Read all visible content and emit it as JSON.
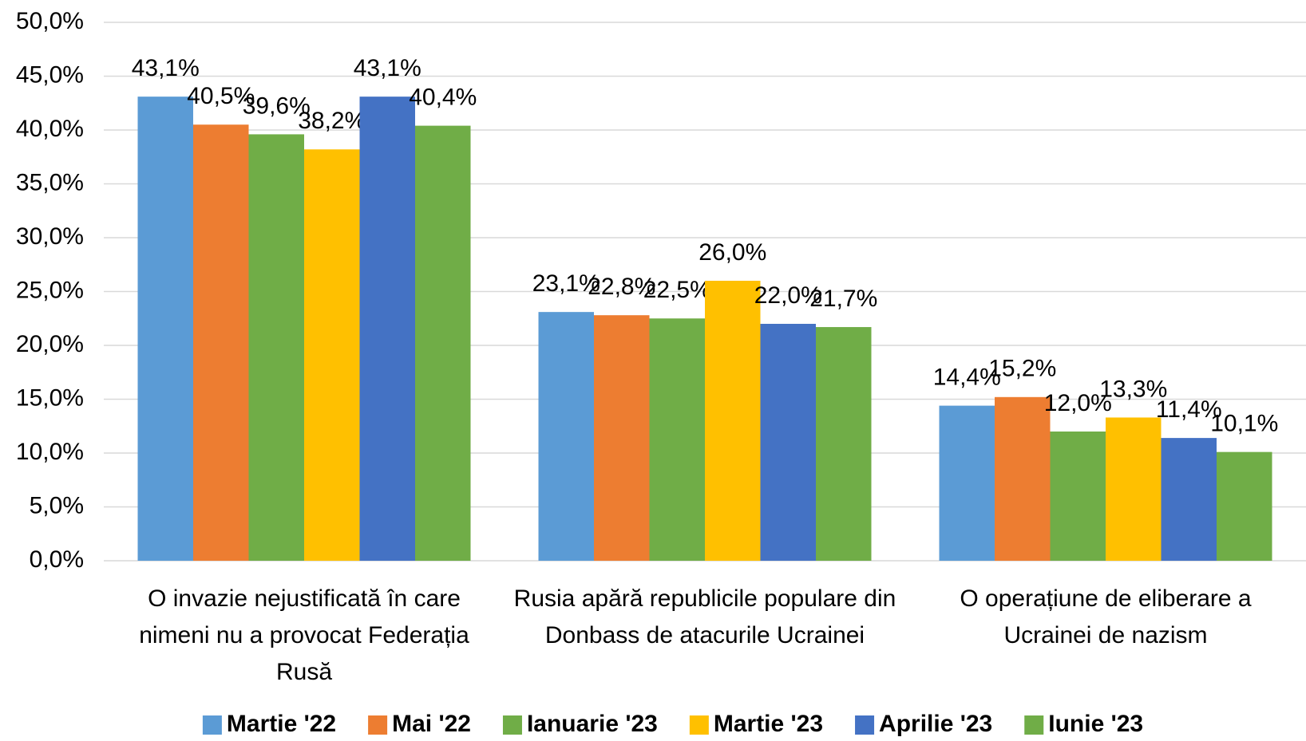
{
  "chart_data": {
    "type": "bar",
    "categories": [
      "O invazie nejustificată în care nimeni nu a provocat Federația Rusă",
      "Rusia apără republicile populare din Donbass de atacurile Ucrainei",
      "O operațiune de eliberare a Ucrainei de nazism"
    ],
    "series": [
      {
        "name": "Martie '22",
        "color": "#5b9bd5",
        "values": [
          43.1,
          23.1,
          14.4
        ],
        "value_labels": [
          "43,1%",
          "23,1%",
          "14,4%"
        ]
      },
      {
        "name": "Mai '22",
        "color": "#ed7d31",
        "values": [
          40.5,
          22.8,
          15.2
        ],
        "value_labels": [
          "40,5%",
          "22,8%",
          "15,2%"
        ]
      },
      {
        "name": "Ianuarie '23",
        "color": "#70ad47",
        "values": [
          39.6,
          22.5,
          12.0
        ],
        "value_labels": [
          "39,6%",
          "22,5%",
          "12,0%"
        ]
      },
      {
        "name": "Martie '23",
        "color": "#ffc000",
        "values": [
          38.2,
          26.0,
          13.3
        ],
        "value_labels": [
          "38,2%",
          "26,0%",
          "13,3%"
        ]
      },
      {
        "name": "Aprilie '23",
        "color": "#4472c4",
        "values": [
          43.1,
          22.0,
          11.4
        ],
        "value_labels": [
          "43,1%",
          "22,0%",
          "11,4%"
        ]
      },
      {
        "name": "Iunie '23",
        "color": "#70ad47",
        "values": [
          40.4,
          21.7,
          10.1
        ],
        "value_labels": [
          "40,4%",
          "21,7%",
          "10,1%"
        ]
      }
    ],
    "ylim": [
      0,
      50
    ],
    "yticks": [
      {
        "value": 0,
        "label": "0,0%"
      },
      {
        "value": 5,
        "label": "5,0%"
      },
      {
        "value": 10,
        "label": "10,0%"
      },
      {
        "value": 15,
        "label": "15,0%"
      },
      {
        "value": 20,
        "label": "20,0%"
      },
      {
        "value": 25,
        "label": "25,0%"
      },
      {
        "value": 30,
        "label": "30,0%"
      },
      {
        "value": 35,
        "label": "35,0%"
      },
      {
        "value": 40,
        "label": "40,0%"
      },
      {
        "value": 45,
        "label": "45,0%"
      },
      {
        "value": 50,
        "label": "50,0%"
      }
    ],
    "grid": true,
    "legend": "bottom"
  }
}
